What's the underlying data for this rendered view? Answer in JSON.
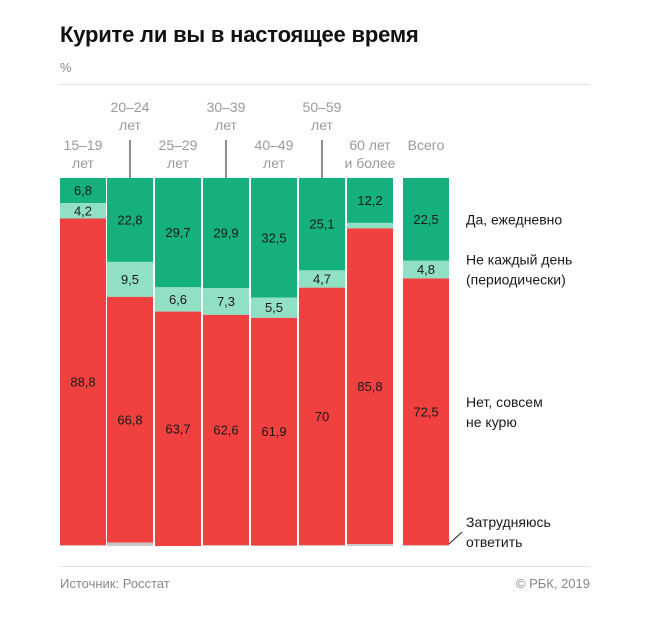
{
  "title": "Курите ли вы в настоящее время",
  "unit": "%",
  "source": "Источник: Росстат",
  "copyright": "© РБК, 2019",
  "colors": {
    "daily": "#15b07d",
    "periodic": "#92e0c4",
    "no": "#f0403f",
    "unsure": "#c8c8c8"
  },
  "chart_data": {
    "type": "bar",
    "stacked": true,
    "title": "Курите ли вы в настоящее время",
    "ylabel": "%",
    "categories": [
      "15–19 лет",
      "20–24 лет",
      "25–29 лет",
      "30–39 лет",
      "40–49 лет",
      "50–59 лет",
      "60 лет и более",
      "Всего"
    ],
    "label_lines": [
      [
        "15–19",
        "лет"
      ],
      [
        "20–24",
        "лет"
      ],
      [
        "25–29",
        "лет"
      ],
      [
        "30–39",
        "лет"
      ],
      [
        "40–49",
        "лет"
      ],
      [
        "50–59",
        "лет"
      ],
      [
        "60 лет",
        "и более"
      ],
      [
        "Всего"
      ]
    ],
    "series": [
      {
        "name": "Да, ежедневно",
        "key": "daily",
        "values": [
          6.8,
          22.8,
          29.7,
          29.9,
          32.5,
          25.1,
          12.2,
          22.5
        ],
        "labels": [
          "6,8",
          "22,8",
          "29,7",
          "29,9",
          "32,5",
          "25,1",
          "12,2",
          "22,5"
        ]
      },
      {
        "name": "Не каждый день (периодически)",
        "key": "periodic",
        "values": [
          4.2,
          9.5,
          6.6,
          7.3,
          5.5,
          4.7,
          1.5,
          4.8
        ],
        "labels": [
          "4,2",
          "9,5",
          "6,6",
          "7,3",
          "5,5",
          "4,7",
          "",
          "4,8"
        ]
      },
      {
        "name": "Нет, совсем не курю",
        "key": "no",
        "values": [
          88.8,
          66.8,
          63.7,
          62.6,
          61.9,
          70,
          85.8,
          72.5
        ],
        "labels": [
          "88,8",
          "66,8",
          "63,7",
          "62,6",
          "61,9",
          "70",
          "85,8",
          "72,5"
        ]
      },
      {
        "name": "Затрудняюсь ответить",
        "key": "unsure",
        "values": [
          0.2,
          0.9,
          0,
          0.2,
          0.1,
          0.2,
          0.5,
          0.2
        ],
        "labels": [
          "",
          "",
          "",
          "",
          "",
          "",
          "",
          ""
        ]
      }
    ],
    "legend": [
      {
        "key": "daily",
        "lines": [
          "Да, ежедневно"
        ]
      },
      {
        "key": "periodic",
        "lines": [
          "Не каждый день",
          "(периодически)"
        ]
      },
      {
        "key": "no",
        "lines": [
          "Нет, совсем",
          "не курю"
        ]
      },
      {
        "key": "unsure",
        "lines": [
          "Затрудняюсь",
          "ответить"
        ]
      }
    ],
    "ylim": [
      0,
      100
    ]
  }
}
